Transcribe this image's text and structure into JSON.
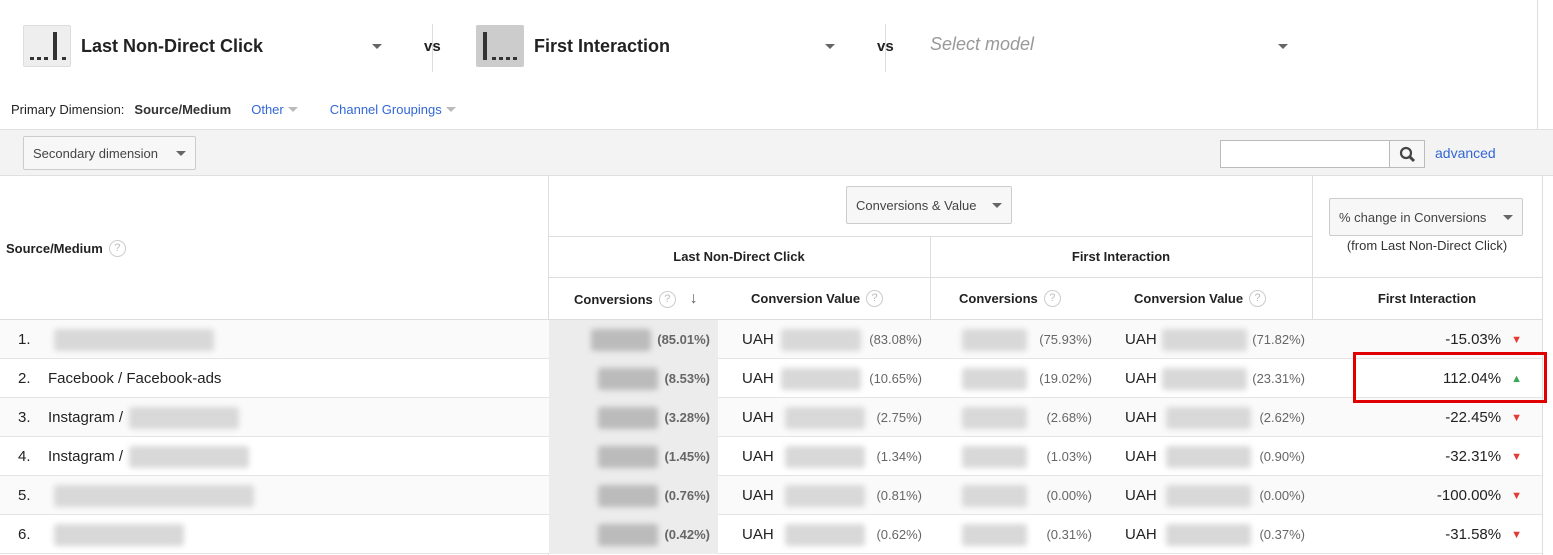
{
  "models": [
    {
      "name": "Last Non-Direct Click",
      "icon": "last-non-direct-click-model-icon"
    },
    {
      "name": "First Interaction",
      "icon": "first-interaction-model-icon"
    },
    {
      "placeholder": "Select model"
    }
  ],
  "vs_label": "vs",
  "dimension": {
    "label": "Primary Dimension:",
    "active": "Source/Medium",
    "other": "Other",
    "channel": "Channel Groupings"
  },
  "toolbar": {
    "secondary": "Secondary dimension",
    "search_value": "",
    "advanced": "advanced"
  },
  "table": {
    "source_header": "Source/Medium",
    "metric_select": "Conversions & Value",
    "change_select": "% change in Conversions",
    "change_note": "(from Last Non-Direct Click)",
    "groups": [
      "Last Non-Direct Click",
      "First Interaction"
    ],
    "change_group": "First Interaction",
    "metrics": [
      "Conversions",
      "Conversion Value",
      "Conversions",
      "Conversion Value"
    ],
    "currency": "UAH",
    "rows": [
      {
        "n": "1.",
        "source": "",
        "c1": "(85.01%)",
        "v1": "(83.08%)",
        "c2": "(75.93%)",
        "v2": "(71.82%)",
        "change": "-15.03%",
        "dir": "down"
      },
      {
        "n": "2.",
        "source": "Facebook / Facebook-ads",
        "c1": "(8.53%)",
        "v1": "(10.65%)",
        "c2": "(19.02%)",
        "v2": "(23.31%)",
        "change": "112.04%",
        "dir": "up",
        "highlight": true
      },
      {
        "n": "3.",
        "source": "Instagram /",
        "c1": "(3.28%)",
        "v1": "(2.75%)",
        "c2": "(2.68%)",
        "v2": "(2.62%)",
        "change": "-22.45%",
        "dir": "down"
      },
      {
        "n": "4.",
        "source": "Instagram /",
        "c1": "(1.45%)",
        "v1": "(1.34%)",
        "c2": "(1.03%)",
        "v2": "(0.90%)",
        "change": "-32.31%",
        "dir": "down"
      },
      {
        "n": "5.",
        "source": "",
        "c1": "(0.76%)",
        "v1": "(0.81%)",
        "c2": "(0.00%)",
        "v2": "(0.00%)",
        "change": "-100.00%",
        "dir": "down"
      },
      {
        "n": "6.",
        "source": "",
        "c1": "(0.42%)",
        "v1": "(0.62%)",
        "c2": "(0.31%)",
        "v2": "(0.37%)",
        "change": "-31.58%",
        "dir": "down"
      }
    ]
  },
  "colors": {
    "highlight": "#e00000",
    "link": "#3367d6",
    "up": "#3aa757",
    "down": "#e53935"
  }
}
